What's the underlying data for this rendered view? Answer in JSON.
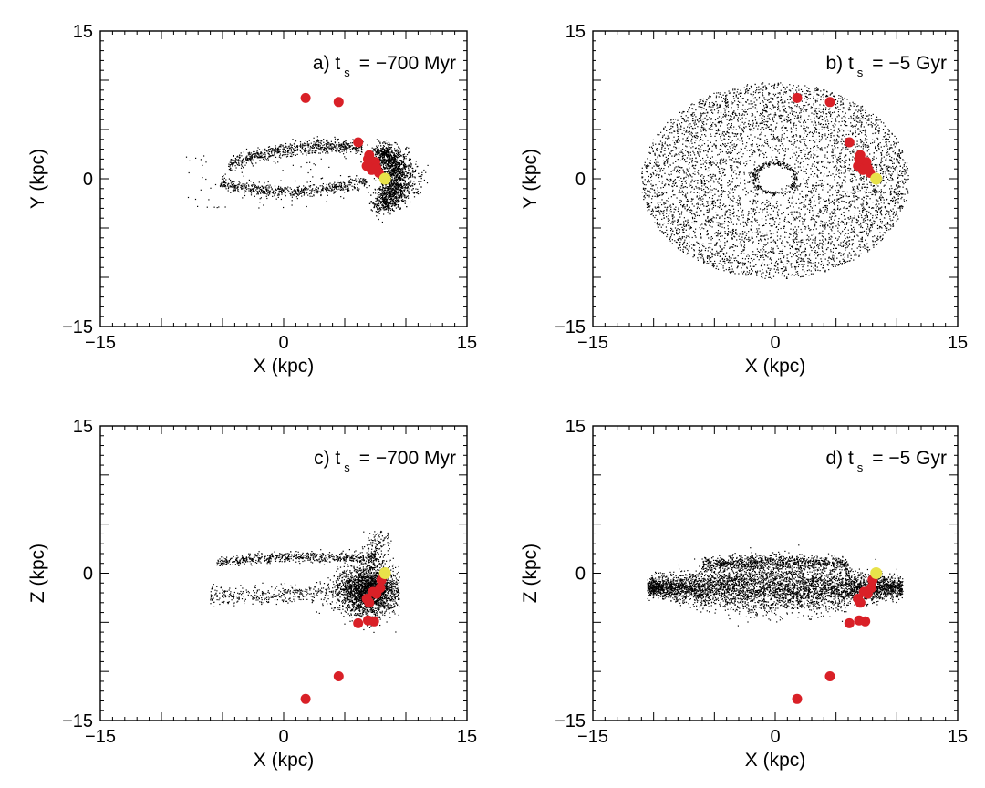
{
  "chart_data": [
    {
      "type": "scatter",
      "id": "a",
      "panel_label": "a) t",
      "panel_subscript": "s",
      "panel_value": "= −700 Myr",
      "xlabel": "X (kpc)",
      "ylabel": "Y (kpc)",
      "xlim": [
        -15,
        15
      ],
      "ylim": [
        -15,
        15
      ],
      "xtick_labels": [
        "−15",
        "0",
        "15"
      ],
      "ytick_labels": [
        "−15",
        "0",
        "15"
      ],
      "series": [
        {
          "name": "simulated particles",
          "style": "black dots",
          "description_points": "dense stream arc from X≈-8 to 9 kpc",
          "regions": [
            {
              "kind": "arc",
              "cx": 7.5,
              "cy": 0,
              "n": 2200,
              "spread": 1.3
            },
            {
              "kind": "upper-tail",
              "n": 700
            },
            {
              "kind": "lower-tail",
              "n": 600
            },
            {
              "kind": "sparse",
              "xrange": [
                -8,
                9
              ],
              "yrange": [
                -5,
                4
              ],
              "n": 120
            }
          ]
        },
        {
          "name": "red markers",
          "style": "red circles",
          "points": [
            [
              1.8,
              8.2
            ],
            [
              4.5,
              7.8
            ],
            [
              6.1,
              3.7
            ],
            [
              7.0,
              2.4
            ],
            [
              7.5,
              1.7
            ],
            [
              6.8,
              1.3
            ],
            [
              7.2,
              0.9
            ],
            [
              7.8,
              0.6
            ],
            [
              6.9,
              2.0
            ],
            [
              7.6,
              1.1
            ]
          ]
        },
        {
          "name": "yellow marker",
          "style": "yellow circle",
          "points": [
            [
              8.3,
              0.0
            ]
          ]
        }
      ]
    },
    {
      "type": "scatter",
      "id": "b",
      "panel_label": "b) t",
      "panel_subscript": "s",
      "panel_value": "= −5 Gyr",
      "xlabel": "X (kpc)",
      "ylabel": "Y (kpc)",
      "xlim": [
        -15,
        15
      ],
      "ylim": [
        -15,
        15
      ],
      "xtick_labels": [
        "−15",
        "0",
        "15"
      ],
      "ytick_labels": [
        "−15",
        "0",
        "15"
      ],
      "series": [
        {
          "name": "simulated particles",
          "style": "black dots",
          "regions": [
            {
              "kind": "disk",
              "rmin": 1.5,
              "rmax": 10.5,
              "n": 5200
            },
            {
              "kind": "ring",
              "r": 1.7,
              "n": 300
            }
          ]
        },
        {
          "name": "red markers",
          "style": "red circles",
          "points": [
            [
              1.8,
              8.2
            ],
            [
              4.5,
              7.8
            ],
            [
              6.1,
              3.7
            ],
            [
              7.0,
              2.4
            ],
            [
              7.5,
              1.7
            ],
            [
              6.8,
              1.3
            ],
            [
              7.2,
              0.9
            ],
            [
              7.8,
              0.6
            ],
            [
              6.9,
              2.0
            ],
            [
              7.6,
              1.1
            ]
          ]
        },
        {
          "name": "yellow marker",
          "style": "yellow circle",
          "points": [
            [
              8.3,
              0.0
            ]
          ]
        }
      ]
    },
    {
      "type": "scatter",
      "id": "c",
      "panel_label": "c) t",
      "panel_subscript": "s",
      "panel_value": "= −700 Myr",
      "xlabel": "X (kpc)",
      "ylabel": "Z (kpc)",
      "xlim": [
        -15,
        15
      ],
      "ylim": [
        -15,
        15
      ],
      "xtick_labels": [
        "−15",
        "0",
        "15"
      ],
      "ytick_labels": [
        "−15",
        "0",
        "15"
      ],
      "series": [
        {
          "name": "simulated particles",
          "style": "black dots",
          "regions": [
            {
              "kind": "blob",
              "cx": 7.0,
              "cy": -1.8,
              "n": 2400,
              "spread": 1.4
            },
            {
              "kind": "upper-stream",
              "n": 600
            },
            {
              "kind": "lower-stream",
              "n": 400
            },
            {
              "kind": "plume",
              "n": 150
            }
          ]
        },
        {
          "name": "red markers",
          "style": "red circles",
          "points": [
            [
              1.8,
              -12.8
            ],
            [
              4.5,
              -10.5
            ],
            [
              6.1,
              -5.1
            ],
            [
              6.9,
              -4.8
            ],
            [
              7.4,
              -4.9
            ],
            [
              7.0,
              -3.0
            ],
            [
              7.6,
              -2.1
            ],
            [
              6.8,
              -2.6
            ],
            [
              7.9,
              -1.5
            ],
            [
              7.3,
              -1.9
            ],
            [
              8.0,
              -0.7
            ]
          ]
        },
        {
          "name": "yellow marker",
          "style": "yellow circle",
          "points": [
            [
              8.3,
              0.0
            ]
          ]
        }
      ]
    },
    {
      "type": "scatter",
      "id": "d",
      "panel_label": "d) t",
      "panel_subscript": "s",
      "panel_value": "= −5 Gyr",
      "xlabel": "X (kpc)",
      "ylabel": "Z (kpc)",
      "xlim": [
        -15,
        15
      ],
      "ylim": [
        -15,
        15
      ],
      "xtick_labels": [
        "−15",
        "0",
        "15"
      ],
      "ytick_labels": [
        "−15",
        "0",
        "15"
      ],
      "series": [
        {
          "name": "simulated particles",
          "style": "black dots",
          "regions": [
            {
              "kind": "slab",
              "xrange": [
                -10.5,
                10.5
              ],
              "ycenter": -1.5,
              "yspread": 1.4,
              "n": 5000
            },
            {
              "kind": "upper-layer",
              "n": 900
            }
          ]
        },
        {
          "name": "red markers",
          "style": "red circles",
          "points": [
            [
              1.8,
              -12.8
            ],
            [
              4.5,
              -10.5
            ],
            [
              6.1,
              -5.1
            ],
            [
              6.9,
              -4.8
            ],
            [
              7.4,
              -4.9
            ],
            [
              7.0,
              -3.0
            ],
            [
              7.6,
              -2.1
            ],
            [
              6.8,
              -2.6
            ],
            [
              7.9,
              -1.5
            ],
            [
              7.3,
              -1.9
            ],
            [
              8.0,
              -0.7
            ]
          ]
        },
        {
          "name": "yellow marker",
          "style": "yellow circle",
          "points": [
            [
              8.3,
              0.0
            ]
          ]
        }
      ]
    }
  ],
  "colors": {
    "particles": "#000000",
    "red_marker": "#d92027",
    "yellow_marker": "#e8e24a",
    "axis": "#000000"
  }
}
